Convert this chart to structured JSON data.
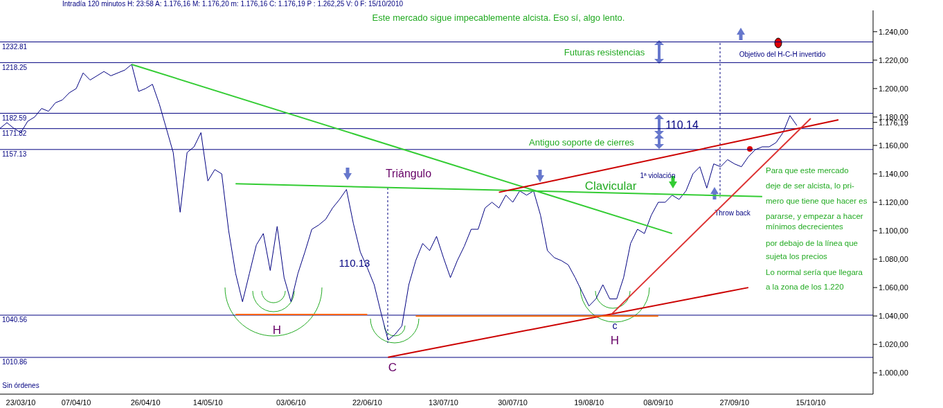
{
  "chart_data": {
    "type": "line",
    "title": "Intradía 120 minutos H: 23:58 A: 1.176,16 M: 1.176,20 m: 1.176,16 C: 1.176,19 P : 1.262,25 V: 0 F: 15/10/2010",
    "categories": [
      null,
      null,
      null,
      "23/03/10",
      null,
      null,
      null,
      null,
      null,
      null,
      null,
      "07/04/10",
      null,
      null,
      null,
      null,
      null,
      null,
      null,
      null,
      null,
      "26/04/10",
      null,
      null,
      null,
      null,
      null,
      null,
      null,
      null,
      "14/05/10",
      null,
      null,
      null,
      null,
      null,
      null,
      null,
      null,
      null,
      null,
      null,
      "03/06/10",
      null,
      null,
      null,
      null,
      null,
      null,
      null,
      null,
      null,
      null,
      "22/06/10",
      null,
      null,
      null,
      null,
      null,
      null,
      null,
      null,
      null,
      null,
      "13/07/10",
      null,
      null,
      null,
      null,
      null,
      null,
      null,
      null,
      null,
      "30/07/10",
      null,
      null,
      null,
      null,
      null,
      null,
      null,
      null,
      null,
      null,
      "19/08/10",
      null,
      null,
      null,
      null,
      null,
      null,
      null,
      null,
      null,
      "08/09/10",
      null,
      null,
      null,
      null,
      null,
      null,
      null,
      null,
      null,
      null,
      "27/09/10",
      null,
      null,
      null,
      null,
      null,
      null,
      null,
      null,
      null,
      null,
      "15/10/10",
      null,
      null,
      null,
      null,
      null,
      null,
      null,
      null,
      null
    ],
    "series": [
      {
        "color": "#000080",
        "values": [
          1172,
          1176,
          1172,
          1169,
          1177,
          1180,
          1186,
          1184,
          1190,
          1192,
          1197,
          1200,
          1211,
          1206,
          1209,
          1212,
          1209,
          1211,
          1213,
          1217,
          1198,
          1200,
          1203,
          1189,
          1172,
          1155,
          1113,
          1155,
          1159,
          1169,
          1135,
          1143,
          1140,
          1100,
          1070,
          1050,
          1070,
          1090,
          1098,
          1072,
          1103,
          1067,
          1050,
          1070,
          1085,
          1101,
          1104,
          1108,
          1116,
          1122,
          1129,
          1105,
          1085,
          1074,
          1062,
          1042,
          1023,
          1027,
          1033,
          1062,
          1079,
          1091,
          1086,
          1096,
          1081,
          1067,
          1079,
          1089,
          1101,
          1101,
          1116,
          1120,
          1116,
          1125,
          1120,
          1128,
          1125,
          1128,
          1111,
          1086,
          1081,
          1079,
          1076,
          1067,
          1057,
          1047,
          1052,
          1062,
          1052,
          1052,
          1067,
          1091,
          1101,
          1098,
          1111,
          1120,
          1120,
          1125,
          1122,
          1128,
          1140,
          1145,
          1130,
          1147,
          1145,
          1150,
          1147,
          1145,
          1152,
          1157,
          1159,
          1159,
          1162,
          1169,
          1181,
          1174,
          null,
          null,
          null,
          null,
          null,
          null,
          null,
          null,
          null,
          null,
          null
        ]
      },
      {
        "type": "line",
        "color": "#33cc33",
        "values": [
          null,
          null,
          null,
          null,
          null,
          null,
          null,
          null,
          null,
          null,
          null,
          null,
          null,
          null,
          null,
          null,
          null,
          null,
          null,
          1217,
          null,
          null,
          null,
          null,
          null,
          null,
          null,
          null,
          null,
          null,
          null,
          null,
          null,
          null,
          null,
          null,
          null,
          null,
          null,
          null,
          null,
          null,
          null,
          null,
          null,
          null,
          null,
          null,
          null,
          null,
          null,
          null,
          null,
          null,
          null,
          null,
          null,
          null,
          null,
          null,
          null,
          null,
          null,
          null,
          null,
          null,
          null,
          null,
          null,
          null,
          null,
          null,
          null,
          null,
          null,
          null,
          null,
          null,
          null,
          null,
          null,
          null,
          null,
          null,
          null,
          null,
          null,
          null,
          null,
          null,
          null,
          null,
          null,
          null,
          null,
          null,
          null,
          1098,
          null,
          null,
          null,
          null,
          null,
          null,
          null,
          null,
          null,
          null,
          null,
          null,
          null,
          null,
          null,
          null,
          null,
          null,
          null,
          null,
          null,
          null,
          null,
          null,
          null,
          null,
          null,
          null,
          null
        ]
      },
      {
        "type": "line",
        "color": "#33cc33",
        "values": [
          null,
          null,
          null,
          null,
          null,
          null,
          null,
          null,
          null,
          null,
          null,
          null,
          null,
          null,
          null,
          null,
          null,
          null,
          null,
          null,
          null,
          null,
          null,
          null,
          null,
          null,
          null,
          null,
          null,
          null,
          null,
          null,
          null,
          null,
          1133,
          null,
          null,
          null,
          null,
          null,
          null,
          null,
          null,
          null,
          null,
          null,
          null,
          null,
          null,
          null,
          null,
          null,
          null,
          null,
          null,
          null,
          null,
          null,
          null,
          null,
          null,
          null,
          null,
          null,
          null,
          null,
          null,
          null,
          null,
          null,
          null,
          null,
          null,
          null,
          null,
          null,
          null,
          null,
          null,
          null,
          null,
          null,
          null,
          null,
          null,
          null,
          null,
          null,
          null,
          null,
          null,
          null,
          null,
          null,
          null,
          null,
          null,
          null,
          null,
          null,
          null,
          null,
          null,
          null,
          null,
          null,
          null,
          null,
          null,
          null,
          1124,
          null,
          null,
          null,
          null,
          null,
          null,
          null,
          null,
          null,
          null,
          null,
          null,
          null,
          null,
          null,
          null
        ]
      },
      {
        "type": "line",
        "color": "#cc0000",
        "values": [
          null,
          null,
          null,
          null,
          null,
          null,
          null,
          null,
          null,
          null,
          null,
          null,
          null,
          null,
          null,
          null,
          null,
          null,
          null,
          null,
          null,
          null,
          null,
          null,
          null,
          null,
          null,
          null,
          null,
          null,
          null,
          null,
          null,
          null,
          null,
          null,
          null,
          null,
          null,
          null,
          null,
          null,
          null,
          null,
          null,
          null,
          null,
          null,
          null,
          null,
          null,
          null,
          null,
          null,
          null,
          null,
          null,
          null,
          null,
          null,
          null,
          null,
          null,
          null,
          null,
          null,
          null,
          null,
          null,
          null,
          null,
          null,
          1127,
          null,
          null,
          null,
          null,
          null,
          null,
          null,
          null,
          null,
          null,
          null,
          null,
          null,
          null,
          null,
          null,
          null,
          null,
          null,
          null,
          null,
          null,
          null,
          null,
          null,
          null,
          null,
          null,
          null,
          null,
          null,
          null,
          null,
          null,
          null,
          null,
          null,
          null,
          null,
          null,
          null,
          null,
          null,
          null,
          null,
          null,
          null,
          null,
          1178,
          null,
          null,
          null,
          null,
          null
        ]
      },
      {
        "type": "line",
        "color": "#cc0000",
        "values": [
          null,
          null,
          null,
          null,
          null,
          null,
          null,
          null,
          null,
          null,
          null,
          null,
          null,
          null,
          null,
          null,
          null,
          null,
          null,
          null,
          null,
          null,
          null,
          null,
          null,
          null,
          null,
          null,
          null,
          null,
          null,
          null,
          null,
          null,
          null,
          null,
          null,
          null,
          null,
          null,
          null,
          null,
          null,
          null,
          null,
          null,
          null,
          null,
          null,
          null,
          null,
          null,
          null,
          null,
          null,
          null,
          1011,
          null,
          null,
          null,
          null,
          null,
          null,
          null,
          null,
          null,
          null,
          null,
          null,
          null,
          null,
          null,
          null,
          null,
          null,
          null,
          null,
          null,
          null,
          null,
          null,
          null,
          null,
          null,
          null,
          null,
          null,
          null,
          null,
          null,
          null,
          null,
          null,
          null,
          null,
          null,
          null,
          null,
          null,
          null,
          null,
          null,
          null,
          null,
          null,
          null,
          null,
          null,
          1060,
          null,
          null,
          null,
          null,
          null,
          null,
          null,
          null,
          null,
          null,
          null,
          null,
          null,
          null,
          null,
          null,
          null,
          null
        ]
      },
      {
        "type": "line",
        "color": "#dd3333",
        "values": [
          null,
          null,
          null,
          null,
          null,
          null,
          null,
          null,
          null,
          null,
          null,
          null,
          null,
          null,
          null,
          null,
          null,
          null,
          null,
          null,
          null,
          null,
          null,
          null,
          null,
          null,
          null,
          null,
          null,
          null,
          null,
          null,
          null,
          null,
          null,
          null,
          null,
          null,
          null,
          null,
          null,
          null,
          null,
          null,
          null,
          null,
          null,
          null,
          null,
          null,
          null,
          null,
          null,
          null,
          null,
          null,
          null,
          null,
          null,
          null,
          null,
          null,
          null,
          null,
          null,
          null,
          null,
          null,
          null,
          null,
          null,
          null,
          null,
          null,
          null,
          null,
          null,
          null,
          null,
          null,
          null,
          null,
          null,
          null,
          null,
          null,
          null,
          null,
          1040,
          null,
          null,
          null,
          null,
          null,
          null,
          null,
          null,
          null,
          null,
          null,
          null,
          null,
          null,
          null,
          null,
          null,
          null,
          null,
          null,
          null,
          null,
          null,
          null,
          null,
          null,
          null,
          null,
          1179,
          null,
          null,
          null,
          null,
          null,
          null,
          null,
          null,
          null
        ]
      },
      {
        "type": "line",
        "color": "#ff6600",
        "values": [
          null,
          null,
          null,
          null,
          null,
          null,
          null,
          null,
          null,
          null,
          null,
          null,
          null,
          null,
          null,
          null,
          null,
          null,
          null,
          null,
          null,
          null,
          null,
          null,
          null,
          null,
          null,
          null,
          null,
          null,
          null,
          null,
          null,
          null,
          1041,
          null,
          null,
          null,
          null,
          null,
          null,
          null,
          null,
          null,
          null,
          null,
          null,
          null,
          null,
          null,
          null,
          null,
          null,
          1041,
          null,
          null,
          null,
          null,
          null,
          null,
          null,
          null,
          null,
          null,
          null,
          null,
          null,
          null,
          null,
          null,
          null,
          null,
          null,
          null,
          null,
          null,
          null,
          null,
          null,
          null,
          null,
          null,
          null,
          null,
          null,
          null,
          null,
          null,
          null,
          null,
          null,
          null,
          null,
          null,
          null,
          null,
          null,
          null,
          null,
          null,
          null,
          null,
          null,
          null,
          null,
          null,
          null,
          null,
          null,
          null,
          null,
          null,
          null,
          null,
          null,
          null,
          null,
          null,
          null,
          null,
          null,
          null,
          null,
          null,
          null,
          null,
          null
        ]
      },
      {
        "type": "line",
        "color": "#ff6600",
        "values": [
          null,
          null,
          null,
          null,
          null,
          null,
          null,
          null,
          null,
          null,
          null,
          null,
          null,
          null,
          null,
          null,
          null,
          null,
          null,
          null,
          null,
          null,
          null,
          null,
          null,
          null,
          null,
          null,
          null,
          null,
          null,
          null,
          null,
          null,
          null,
          null,
          null,
          null,
          null,
          null,
          null,
          null,
          null,
          null,
          null,
          null,
          null,
          null,
          null,
          null,
          null,
          null,
          null,
          null,
          null,
          null,
          null,
          null,
          null,
          null,
          1040,
          null,
          null,
          null,
          null,
          null,
          null,
          null,
          null,
          null,
          null,
          null,
          null,
          null,
          null,
          null,
          null,
          null,
          null,
          null,
          null,
          null,
          null,
          null,
          null,
          null,
          null,
          null,
          null,
          null,
          null,
          null,
          null,
          null,
          null,
          1040,
          null,
          null,
          null,
          null,
          null,
          null,
          null,
          null,
          null,
          null,
          null,
          null,
          null,
          null,
          null,
          null,
          null,
          null,
          null,
          null,
          null,
          null,
          null,
          null,
          null,
          null,
          null,
          null,
          null,
          null,
          null
        ]
      }
    ],
    "ylim": [
      985,
      1255
    ],
    "yticks": [
      {
        "value": 1000,
        "label": "1.000,00"
      },
      {
        "value": 1020,
        "label": "1.020,00"
      },
      {
        "value": 1040,
        "label": "1.040,00"
      },
      {
        "value": 1060,
        "label": "1.060,00"
      },
      {
        "value": 1080,
        "label": "1.080,00"
      },
      {
        "value": 1100,
        "label": "1.100,00"
      },
      {
        "value": 1120,
        "label": "1.120,00"
      },
      {
        "value": 1140,
        "label": "1.140,00"
      },
      {
        "value": 1160,
        "label": "1.160,00"
      },
      {
        "value": 1176.19,
        "label": "1.176,19"
      },
      {
        "value": 1180,
        "label": "1.180,00"
      },
      {
        "value": 1200,
        "label": "1.200,00"
      },
      {
        "value": 1220,
        "label": "1.220,00"
      },
      {
        "value": 1240,
        "label": "1.240,00"
      }
    ],
    "ref_lines": [
      {
        "axis": "y",
        "value": 1232.81,
        "label": "1232.81",
        "color": "#000080"
      },
      {
        "axis": "y",
        "value": 1218.25,
        "label": "1218.25",
        "color": "#000080"
      },
      {
        "axis": "y",
        "value": 1182.59,
        "label": "1182.59",
        "color": "#000080"
      },
      {
        "axis": "y",
        "value": 1171.82,
        "label": "1171.82",
        "color": "#000080"
      },
      {
        "axis": "y",
        "value": 1157.13,
        "label": "1157.13",
        "color": "#000080"
      },
      {
        "axis": "y",
        "value": 1040.56,
        "label": "1040.56",
        "color": "#000080"
      },
      {
        "axis": "y",
        "value": 1010.86,
        "label": "1010.86",
        "color": "#000080"
      }
    ],
    "annotations": [
      "Este mercado sigue impecablemente alcista. Eso sí, algo lento.",
      "Futuras resistencias",
      "Objetivo del H-C-H invertido",
      "110.14",
      "Antiguo soporte de cierres",
      {
        "text": "Triángulo",
        "y": 1130
      },
      "Clavicular",
      "1ª violación",
      "Throw back",
      "110.13",
      "H",
      "C",
      "c",
      "H",
      "Para que este mercado",
      "deje de ser alcista, lo pri-",
      "mero que tiene que hacer es",
      "pararse, y empezar a hacer",
      "mínimos decrecientes",
      "por debajo de la línea que",
      "sujeta los precios",
      "Lo normal sería que llegara",
      "a la zona de los 1.220",
      "Sin órdenes"
    ]
  }
}
